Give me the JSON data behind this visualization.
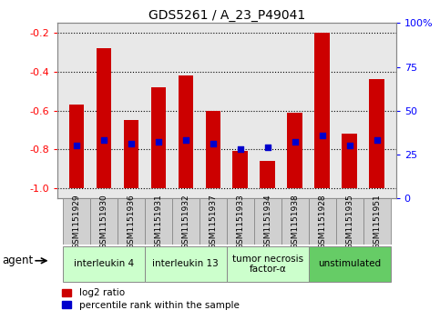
{
  "title": "GDS5261 / A_23_P49041",
  "samples": [
    "GSM1151929",
    "GSM1151930",
    "GSM1151936",
    "GSM1151931",
    "GSM1151932",
    "GSM1151937",
    "GSM1151933",
    "GSM1151934",
    "GSM1151938",
    "GSM1151928",
    "GSM1151935",
    "GSM1151951"
  ],
  "log2_ratio": [
    -0.57,
    -0.28,
    -0.65,
    -0.48,
    -0.42,
    -0.6,
    -0.81,
    -0.86,
    -0.61,
    -0.2,
    -0.72,
    -0.44
  ],
  "percentile": [
    30,
    33,
    31,
    32,
    33,
    31,
    28,
    29,
    32,
    36,
    30,
    33
  ],
  "groups": [
    {
      "label": "interleukin 4",
      "indices": [
        0,
        1,
        2
      ],
      "color": "#ccffcc"
    },
    {
      "label": "interleukin 13",
      "indices": [
        3,
        4,
        5
      ],
      "color": "#ccffcc"
    },
    {
      "label": "tumor necrosis\nfactor-α",
      "indices": [
        6,
        7,
        8
      ],
      "color": "#ccffcc"
    },
    {
      "label": "unstimulated",
      "indices": [
        9,
        10,
        11
      ],
      "color": "#66cc66"
    }
  ],
  "bar_color": "#cc0000",
  "dot_color": "#0000cc",
  "ylim_left": [
    -1.05,
    -0.15
  ],
  "yticks_left": [
    -1.0,
    -0.8,
    -0.6,
    -0.4,
    -0.2
  ],
  "ylim_right": [
    0,
    100
  ],
  "yticks_right": [
    0,
    25,
    50,
    75,
    100
  ],
  "bg_color": "#ffffff",
  "plot_bg": "#e8e8e8",
  "bar_width": 0.55,
  "tick_bg": "#d0d0d0"
}
